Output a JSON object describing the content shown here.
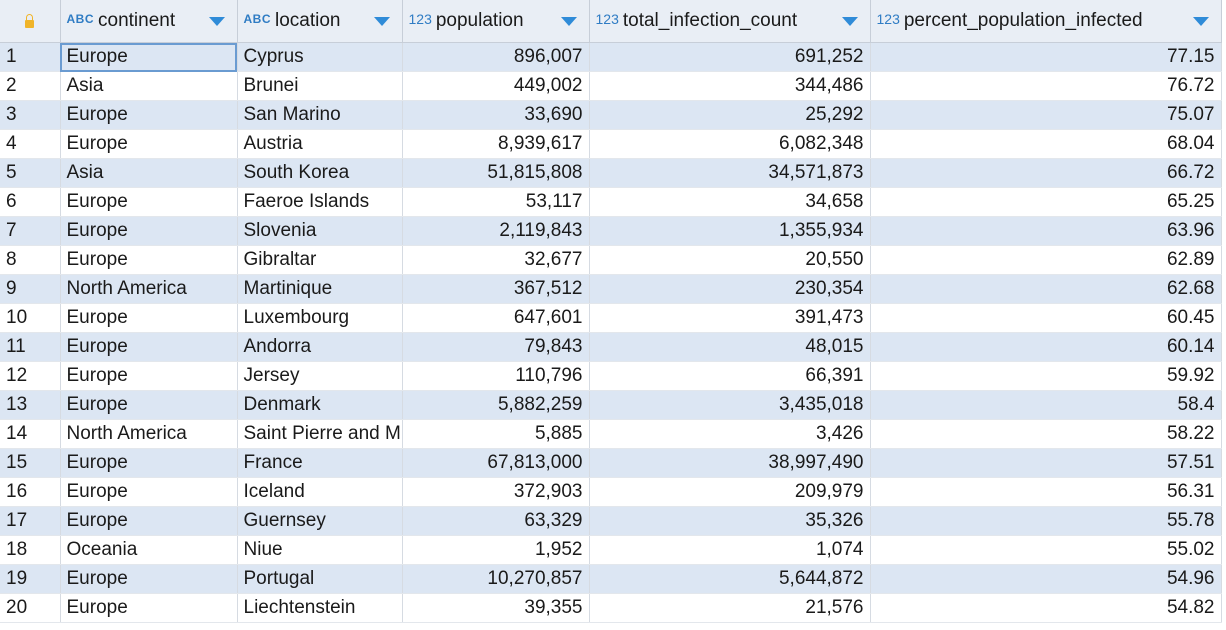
{
  "columns": [
    {
      "type": "ABC",
      "name": "continent"
    },
    {
      "type": "ABC",
      "name": "location"
    },
    {
      "type": "123",
      "name": "population"
    },
    {
      "type": "123",
      "name": "total_infection_count"
    },
    {
      "type": "123",
      "name": "percent_population_infected"
    }
  ],
  "rows": [
    {
      "n": "1",
      "continent": "Europe",
      "location": "Cyprus",
      "population": "896,007",
      "total": "691,252",
      "percent": "77.15"
    },
    {
      "n": "2",
      "continent": "Asia",
      "location": "Brunei",
      "population": "449,002",
      "total": "344,486",
      "percent": "76.72"
    },
    {
      "n": "3",
      "continent": "Europe",
      "location": "San Marino",
      "population": "33,690",
      "total": "25,292",
      "percent": "75.07"
    },
    {
      "n": "4",
      "continent": "Europe",
      "location": "Austria",
      "population": "8,939,617",
      "total": "6,082,348",
      "percent": "68.04"
    },
    {
      "n": "5",
      "continent": "Asia",
      "location": "South Korea",
      "population": "51,815,808",
      "total": "34,571,873",
      "percent": "66.72"
    },
    {
      "n": "6",
      "continent": "Europe",
      "location": "Faeroe Islands",
      "population": "53,117",
      "total": "34,658",
      "percent": "65.25"
    },
    {
      "n": "7",
      "continent": "Europe",
      "location": "Slovenia",
      "population": "2,119,843",
      "total": "1,355,934",
      "percent": "63.96"
    },
    {
      "n": "8",
      "continent": "Europe",
      "location": "Gibraltar",
      "population": "32,677",
      "total": "20,550",
      "percent": "62.89"
    },
    {
      "n": "9",
      "continent": "North America",
      "location": "Martinique",
      "population": "367,512",
      "total": "230,354",
      "percent": "62.68"
    },
    {
      "n": "10",
      "continent": "Europe",
      "location": "Luxembourg",
      "population": "647,601",
      "total": "391,473",
      "percent": "60.45"
    },
    {
      "n": "11",
      "continent": "Europe",
      "location": "Andorra",
      "population": "79,843",
      "total": "48,015",
      "percent": "60.14"
    },
    {
      "n": "12",
      "continent": "Europe",
      "location": "Jersey",
      "population": "110,796",
      "total": "66,391",
      "percent": "59.92"
    },
    {
      "n": "13",
      "continent": "Europe",
      "location": "Denmark",
      "population": "5,882,259",
      "total": "3,435,018",
      "percent": "58.4"
    },
    {
      "n": "14",
      "continent": "North America",
      "location": "Saint Pierre and M",
      "population": "5,885",
      "total": "3,426",
      "percent": "58.22"
    },
    {
      "n": "15",
      "continent": "Europe",
      "location": "France",
      "population": "67,813,000",
      "total": "38,997,490",
      "percent": "57.51"
    },
    {
      "n": "16",
      "continent": "Europe",
      "location": "Iceland",
      "population": "372,903",
      "total": "209,979",
      "percent": "56.31"
    },
    {
      "n": "17",
      "continent": "Europe",
      "location": "Guernsey",
      "population": "63,329",
      "total": "35,326",
      "percent": "55.78"
    },
    {
      "n": "18",
      "continent": "Oceania",
      "location": "Niue",
      "population": "1,952",
      "total": "1,074",
      "percent": "55.02"
    },
    {
      "n": "19",
      "continent": "Europe",
      "location": "Portugal",
      "population": "10,270,857",
      "total": "5,644,872",
      "percent": "54.96"
    },
    {
      "n": "20",
      "continent": "Europe",
      "location": "Liechtenstein",
      "population": "39,355",
      "total": "21,576",
      "percent": "54.82"
    }
  ]
}
